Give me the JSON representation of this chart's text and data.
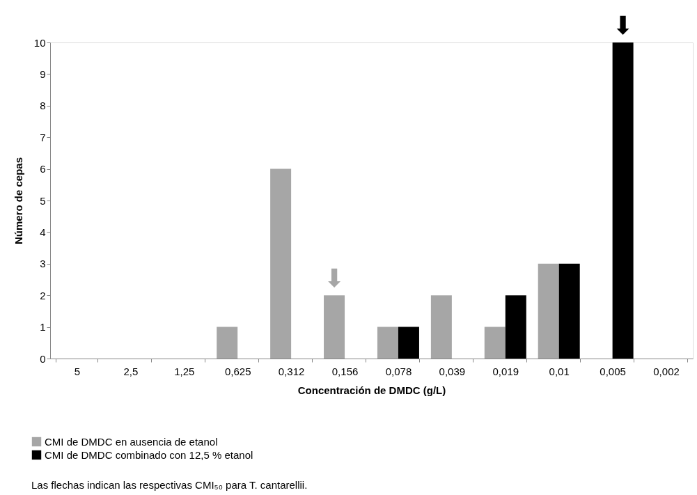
{
  "chart_data": {
    "type": "bar",
    "xlabel": "Concentración de DMDC (g/L)",
    "ylabel": "Número de cepas",
    "categories": [
      "5",
      "2,5",
      "1,25",
      "0,625",
      "0,312",
      "0,156",
      "0,078",
      "0,039",
      "0,019",
      "0,01",
      "0,005",
      "0,002"
    ],
    "series": [
      {
        "name": "CMI de DMDC en ausencia de etanol",
        "color": "#a6a6a6",
        "values": [
          0,
          0,
          0,
          1,
          6,
          2,
          1,
          2,
          1,
          3,
          0,
          0
        ]
      },
      {
        "name": "CMI de DMDC combinado con 12,5 % etanol",
        "color": "#000000",
        "values": [
          0,
          0,
          0,
          0,
          0,
          0,
          1,
          0,
          2,
          3,
          10,
          0
        ]
      }
    ],
    "ylim": [
      0,
      10
    ],
    "yticks": [
      0,
      1,
      2,
      3,
      4,
      5,
      6,
      7,
      8,
      9,
      10
    ],
    "grid": false,
    "legend": "bottom",
    "annotations": [
      {
        "text": "⬇",
        "x": "0,156",
        "y": 2
      },
      {
        "text": "⬇",
        "x": "0,005",
        "y": 10
      },
      "Las flechas indican las respectivas CMI₅₀ para T. cantarellii."
    ]
  }
}
